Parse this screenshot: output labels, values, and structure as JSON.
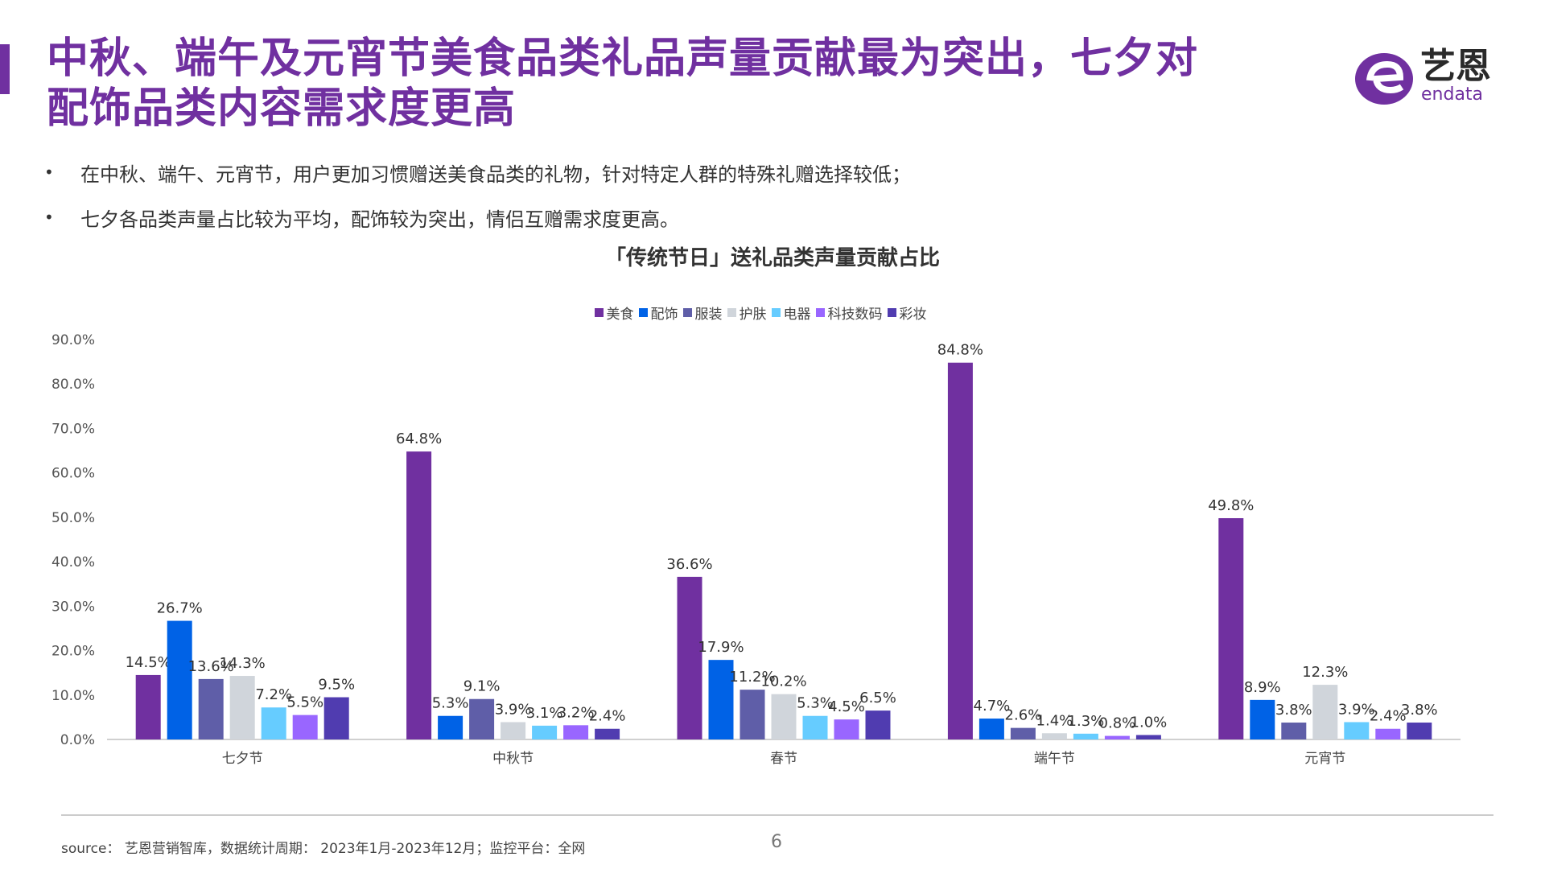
{
  "header": {
    "title_line1": "中秋、端午及元宵节美食品类礼品声量贡献最为突出，七夕对",
    "title_line2": "配饰品类内容需求度更高"
  },
  "logo": {
    "cn": "艺恩",
    "en": "endata"
  },
  "bullets": [
    "在中秋、端午、元宵节，用户更加习惯赠送美食品类的礼物，针对特定人群的特殊礼赠选择较低；",
    "七夕各品类声量占比较为平均，配饰较为突出，情侣互赠需求度更高。"
  ],
  "chart_data": {
    "type": "bar",
    "title": "「传统节日」送礼品类声量贡献占比",
    "categories": [
      "七夕节",
      "中秋节",
      "春节",
      "端午节",
      "元宵节"
    ],
    "series": [
      {
        "name": "美食",
        "color": "#7030a0",
        "values": [
          14.5,
          64.8,
          36.6,
          84.8,
          49.8
        ]
      },
      {
        "name": "配饰",
        "color": "#0062e6",
        "values": [
          26.7,
          5.3,
          17.9,
          4.7,
          8.9
        ]
      },
      {
        "name": "服装",
        "color": "#5f5ea8",
        "values": [
          13.6,
          9.1,
          11.2,
          2.6,
          3.8
        ]
      },
      {
        "name": "护肤",
        "color": "#d0d5db",
        "values": [
          14.3,
          3.9,
          10.2,
          1.4,
          12.3
        ]
      },
      {
        "name": "电器",
        "color": "#66ccff",
        "values": [
          7.2,
          3.1,
          5.3,
          1.3,
          3.9
        ]
      },
      {
        "name": "科技数码",
        "color": "#9966ff",
        "values": [
          5.5,
          3.2,
          4.5,
          0.8,
          2.4
        ]
      },
      {
        "name": "彩妆",
        "color": "#503cb0",
        "values": [
          9.5,
          2.4,
          6.5,
          1.0,
          3.8
        ]
      }
    ],
    "yticks": [
      "0.0%",
      "10.0%",
      "20.0%",
      "30.0%",
      "40.0%",
      "50.0%",
      "60.0%",
      "70.0%",
      "80.0%",
      "90.0%"
    ],
    "ylim": [
      0,
      90
    ],
    "legend": "top-center",
    "grid": false
  },
  "footer": {
    "source": "source： 艺恩营销智库，数据统计周期： 2023年1月-2023年12月；监控平台：全网",
    "page": "6"
  }
}
